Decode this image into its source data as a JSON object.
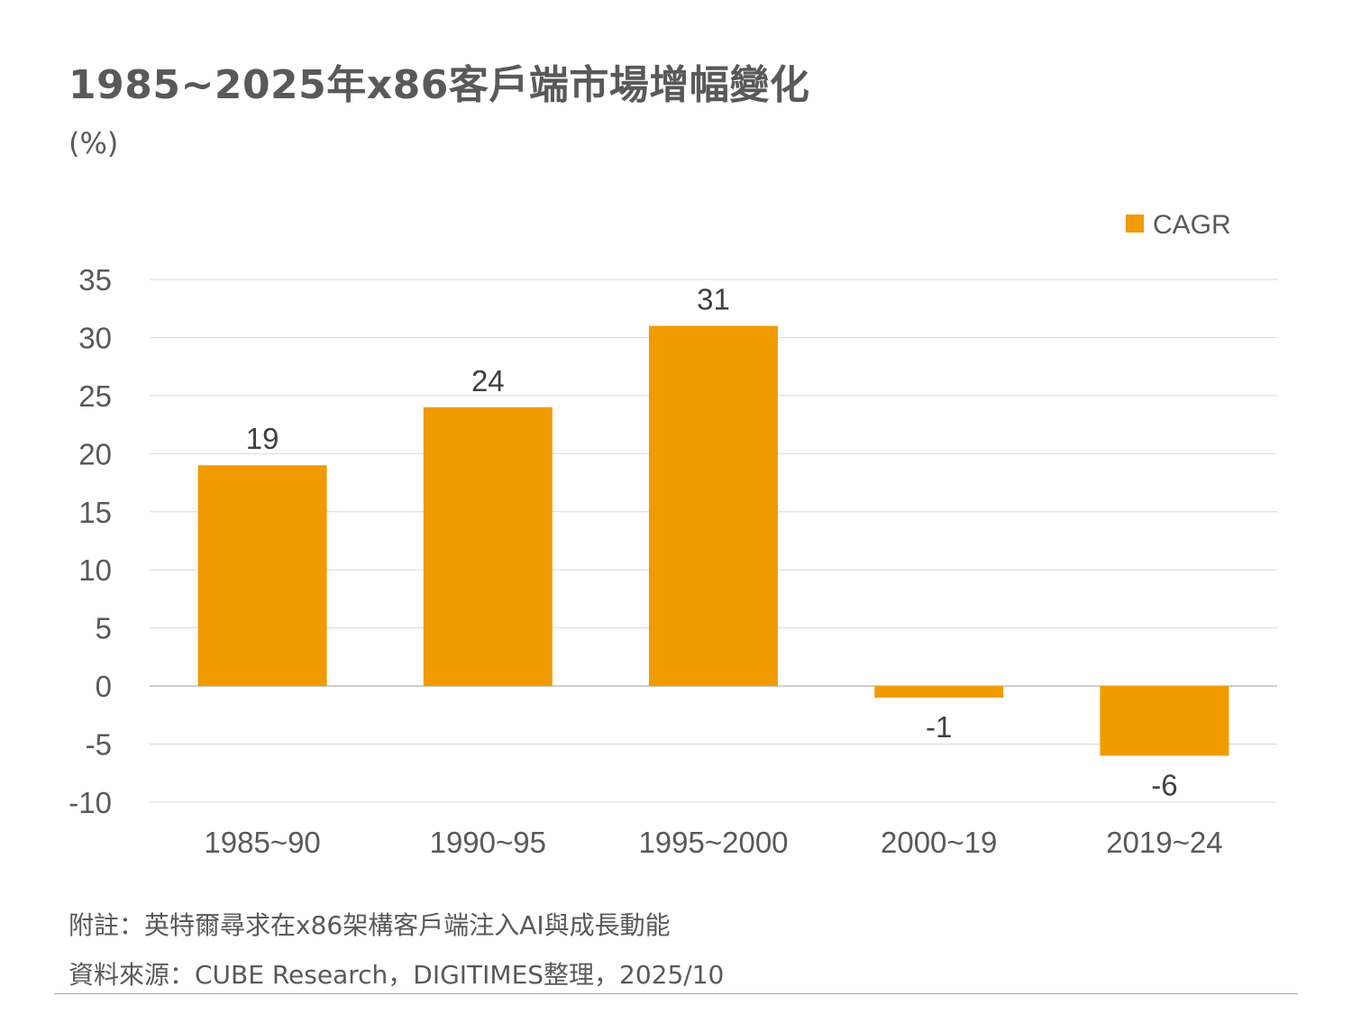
{
  "title": "1985~2025年x86客戶端市場增幅變化",
  "unit": "(%)",
  "note": "附註：英特爾尋求在x86架構客戶端注入AI與成長動能",
  "source": "資料來源：CUBE Research，DIGITIMES整理，2025/10",
  "colors": {
    "bar": "#F09B00",
    "grid": "#d9d9d9",
    "text": "#595959"
  },
  "chart_data": {
    "type": "bar",
    "title": "1985~2025年x86客戶端市場增幅變化",
    "ylabel": "(%)",
    "xlabel": "",
    "categories": [
      "1985~90",
      "1990~95",
      "1995~2000",
      "2000~19",
      "2019~24"
    ],
    "series": [
      {
        "name": "CAGR",
        "values": [
          19,
          24,
          31,
          -1,
          -6
        ]
      }
    ],
    "ylim": [
      -10,
      35
    ],
    "yticks": [
      35,
      30,
      25,
      20,
      15,
      10,
      5,
      0,
      -5,
      -10
    ],
    "grid": true,
    "legend": "top-right"
  }
}
